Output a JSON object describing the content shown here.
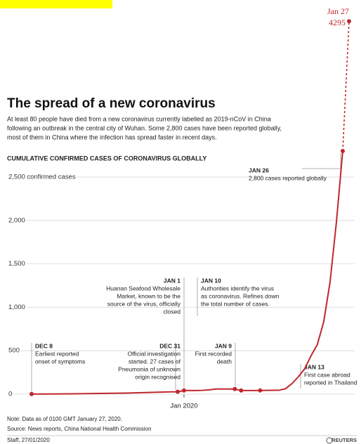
{
  "header": {
    "title": "The spread of a new coronavirus",
    "subtitle": [
      "At least 80 people have died from a new coronavirus currently labelled as 2019-nCoV in China",
      "following an outbreak in the central city of Wuhan. Some 2,800 cases have been reported globally,",
      "most of them in China where the infection has spread faster in recent days."
    ]
  },
  "chart_data": {
    "type": "line",
    "title": "CUMULATIVE CONFIRMED CASES OF CORONAVIRUS GLOBALLY",
    "categories": [
      null,
      null,
      null,
      null,
      null,
      null,
      null,
      null,
      null,
      null,
      null,
      null,
      null,
      null,
      null,
      null,
      null,
      null,
      null,
      null,
      null,
      null,
      null,
      null,
      "Jan 2020",
      null,
      null,
      null,
      null,
      null,
      null,
      null,
      null,
      null,
      null,
      null,
      null,
      null,
      null,
      null,
      null,
      null,
      null,
      null,
      null,
      null,
      null,
      null,
      null,
      null,
      null
    ],
    "series": [
      {
        "color": "#c0272d",
        "values": [
          1,
          1,
          1,
          2,
          2,
          3,
          3,
          4,
          5,
          6,
          7,
          8,
          9,
          10,
          11,
          12,
          14,
          16,
          18,
          20,
          22,
          24,
          26,
          27,
          41,
          41,
          41,
          44,
          50,
          59,
          59,
          59,
          59,
          41,
          41,
          41,
          42,
          43,
          44,
          45,
          62,
          121,
          198,
          291,
          440,
          571,
          830,
          1287,
          1975,
          2800,
          4295
        ]
      }
    ],
    "end_label": "Jan 27",
    "ylim": [
      0,
      4337
    ],
    "yticks": [
      0,
      500,
      {
        "value": 1000,
        "label": "1,000"
      },
      {
        "value": 1500,
        "label": "1,500"
      },
      {
        "value": 2000,
        "label": "2,000"
      },
      {
        "value": 2500,
        "label": "2,500 confirmed cases"
      }
    ],
    "grid": true,
    "annotations": [
      {
        "lines": [
          "DEC 8",
          "Earliest reported",
          "onset of symptoms"
        ]
      },
      {
        "lines": [
          "DEC 31",
          "Official investigation",
          "started. 27 cases of",
          "Pneumonia of unknown",
          "origin recognised"
        ]
      },
      {
        "lines": [
          "JAN 1",
          "Huanan Seafood Wholesale",
          "Market, known to be the",
          "source of the virus, officially",
          "closed"
        ]
      },
      {
        "lines": [
          "JAN 10",
          "Authorities identify the virus",
          "as coronavirus. Refines down",
          "the total number of cases."
        ]
      },
      {
        "lines": [
          "JAN 9",
          "First recorded",
          "death"
        ]
      },
      {
        "lines": [
          "JAN 13",
          "First case abroad",
          "reported in Thailand"
        ]
      },
      {
        "lines": [
          "JAN 26",
          "2,800 cases reported globally"
        ]
      }
    ]
  },
  "footer": {
    "note": "Note: Data as of 0100 GMT January 27, 2020.",
    "source": "Source: News reports, China National Health Commission",
    "credit": "Staff, 27/01/2020",
    "logo": "REUTERS"
  }
}
